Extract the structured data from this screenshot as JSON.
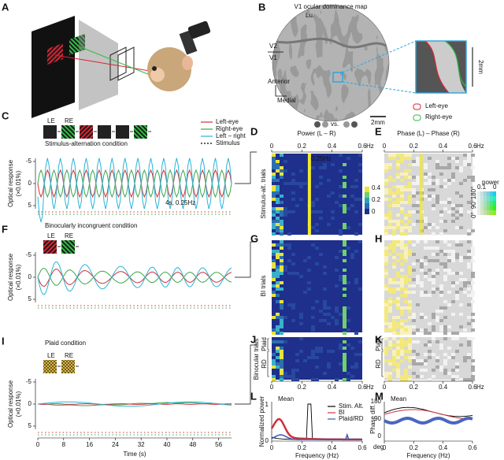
{
  "panels": {
    "A": {
      "label": "A"
    },
    "B": {
      "label": "B",
      "title": "V1 ocular dominance map",
      "area_top": "V2",
      "area_bottom": "V1",
      "region": "Lu.",
      "dir_anterior": "Anterior",
      "dir_medial": "Medial",
      "scale_main": "2mm",
      "scale_inset": "2mm",
      "vs": "vs.",
      "legend": [
        "Left-eye",
        "Right-eye"
      ]
    },
    "C": {
      "label": "C",
      "title": "Stimulus-alternation condition",
      "eyes": [
        "LE",
        "RE"
      ],
      "legend": [
        "Left-eye",
        "Right-eye",
        "Left – right",
        "Stimulus"
      ],
      "note": "4s, 0.25Hz"
    },
    "D": {
      "label": "D",
      "title": "Power (L – R)",
      "ylabel": "Stimulus-alt. trials",
      "note": "0.25Hz",
      "colorbar": [
        "0.4",
        "0.2",
        "0"
      ]
    },
    "E": {
      "label": "E",
      "title": "Phase (L) – Phase (R)",
      "colorbar_title": "power",
      "colorbar_top": [
        "0.1",
        "0"
      ],
      "colorbar_side": [
        "0°",
        "90°",
        "180°"
      ]
    },
    "F": {
      "label": "F",
      "title": "Binocularly incongruent condition",
      "eyes": [
        "LE",
        "RE"
      ]
    },
    "G": {
      "label": "G",
      "ylabel": "BI trials"
    },
    "H": {
      "label": "H"
    },
    "I": {
      "label": "I",
      "title": "Plaid condition",
      "eyes": [
        "LE",
        "RE"
      ]
    },
    "J": {
      "label": "J",
      "ylabel": "Binocular trials",
      "groups": [
        "Plaid",
        "RD"
      ]
    },
    "K": {
      "label": "K",
      "groups": [
        "Plaid",
        "RD"
      ]
    },
    "L": {
      "label": "L",
      "title": "Mean",
      "ylabel": "Normalized power",
      "yticks": [
        "1",
        "0"
      ],
      "xlabel": "Frequency (Hz)",
      "legend": [
        "Stim. Alt.",
        "BI",
        "Plaid/RD"
      ]
    },
    "M": {
      "label": "M",
      "title": "Mean",
      "ylabel": "Phase diff.",
      "yticks": [
        "180",
        "90",
        "0"
      ],
      "unit": "deg",
      "xlabel": "Frequency (Hz)"
    }
  },
  "trace_axes": {
    "ylabel": [
      "Optical response",
      "(×0.01%)"
    ],
    "yticks": [
      "-5",
      "0",
      "5"
    ],
    "xticks": [
      "0",
      "8",
      "16",
      "24",
      "32",
      "40",
      "48",
      "56"
    ],
    "xlabel": "Time (s)"
  },
  "freq_axes": {
    "xticks": [
      "0",
      "0.2",
      "0.4",
      "0.6"
    ],
    "unit": "Hz"
  }
}
